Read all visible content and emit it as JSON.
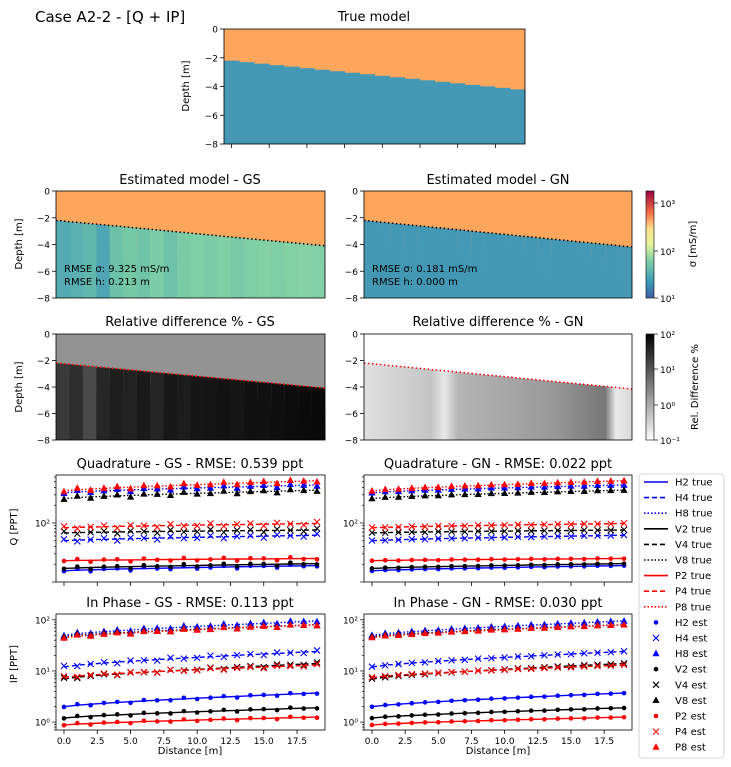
{
  "figure": {
    "suptitle": "Case A2-2 - [Q + IP]",
    "colors": {
      "layer1": "#FDA65C",
      "layer2": "#4398B5",
      "H": "#0000FF",
      "V": "#000000",
      "P": "#FF0000"
    }
  },
  "chart_data": [
    {
      "id": "true_model",
      "type": "heatmap",
      "title": "True model",
      "ylabel": "Depth [m]",
      "ylim": [
        -8,
        0
      ],
      "yticks": [
        "0",
        "−2",
        "−4",
        "−6",
        "−8"
      ],
      "x": [
        0,
        19.5
      ],
      "interface_depth": [
        -2.2,
        -4.2
      ]
    },
    {
      "id": "est_gs",
      "type": "heatmap",
      "title": "Estimated model - GS",
      "ylabel": "Depth [m]",
      "ylim": [
        -8,
        0
      ],
      "yticks": [
        "0",
        "−2",
        "−4",
        "−6",
        "−8"
      ],
      "interface_depth": [
        -2.2,
        -4.1
      ],
      "annotations": [
        "RMSE σ: 9.325 mS/m",
        "RMSE h: 0.213 m"
      ]
    },
    {
      "id": "est_gn",
      "type": "heatmap",
      "title": "Estimated model - GN",
      "yticks": [
        "0",
        "−2",
        "−4",
        "−6",
        "−8"
      ],
      "interface_depth": [
        -2.2,
        -4.2
      ],
      "annotations": [
        "RMSE σ: 0.181 mS/m",
        "RMSE h: 0.000 m"
      ]
    },
    {
      "id": "rel_gs",
      "type": "heatmap",
      "title": "Relative difference % - GS",
      "ylabel": "Depth [m]",
      "ylim": [
        -8,
        0
      ],
      "yticks": [
        "0",
        "−2",
        "−4",
        "−6",
        "−8"
      ]
    },
    {
      "id": "rel_gn",
      "type": "heatmap",
      "title": "Relative difference % - GN",
      "yticks": [
        "0",
        "−2",
        "−4",
        "−6",
        "−8"
      ]
    },
    {
      "id": "colorbar_sigma",
      "type": "heatmap",
      "label": "σ [mS/m]",
      "scale": "log",
      "range": [
        10,
        2000
      ],
      "tick_labels": [
        "10³",
        "10²",
        "10¹"
      ]
    },
    {
      "id": "colorbar_rel",
      "type": "heatmap",
      "label": "Rel. Difference %",
      "scale": "log",
      "range": [
        0.1,
        100
      ],
      "tick_labels": [
        "10²",
        "10¹",
        "10⁰",
        "10⁻¹"
      ]
    },
    {
      "id": "quad_gs",
      "type": "scatter",
      "title": "Quadrature - GS - RMSE: 0.539 ppt",
      "ylabel": "Q [PPT]",
      "yscale": "log",
      "ylim": [
        10,
        650
      ],
      "ytick_labels": [
        "10²"
      ],
      "x": [
        0,
        19.5
      ],
      "xtick_labels": []
    },
    {
      "id": "quad_gn",
      "type": "scatter",
      "title": "Quadrature - GN - RMSE: 0.022 ppt",
      "yscale": "log",
      "ylim": [
        10,
        650
      ],
      "ytick_labels": [
        "10²"
      ]
    },
    {
      "id": "ip_gs",
      "type": "scatter",
      "title": "In Phase - GS - RMSE: 0.113 ppt",
      "ylabel": "IP [PPT]",
      "xlabel": "Distance [m]",
      "yscale": "log",
      "ylim": [
        0.7,
        130
      ],
      "ytick_labels": [
        "10⁰",
        "10¹",
        "10²"
      ],
      "xtick_labels": [
        "0.0",
        "2.5",
        "5.0",
        "7.5",
        "10.0",
        "12.5",
        "15.0",
        "17.5"
      ]
    },
    {
      "id": "ip_gn",
      "type": "scatter",
      "title": "In Phase - GN - RMSE: 0.030 ppt",
      "xlabel": "Distance [m]",
      "yscale": "log",
      "ylim": [
        0.7,
        130
      ],
      "ytick_labels": [
        "10⁰",
        "10¹",
        "10²"
      ],
      "xtick_labels": [
        "0.0",
        "2.5",
        "5.0",
        "7.5",
        "10.0",
        "12.5",
        "15.0",
        "17.5"
      ]
    }
  ],
  "series": {
    "x": [
      0,
      1,
      2,
      3,
      4,
      5,
      6,
      7,
      8,
      9,
      10,
      11,
      12,
      13,
      14,
      15,
      16,
      17,
      18,
      19
    ],
    "Q": {
      "H2": [
        15.5,
        19
      ],
      "H4": [
        50,
        62
      ],
      "H8": [
        325,
        440
      ],
      "V2": [
        17,
        20.5
      ],
      "V4": [
        68,
        76
      ],
      "V8": [
        260,
        360
      ],
      "P2": [
        23,
        25
      ],
      "P4": [
        83,
        98
      ],
      "P8": [
        350,
        520
      ]
    },
    "IP": {
      "H2": [
        2.0,
        3.7
      ],
      "H4": [
        12,
        24
      ],
      "H8": [
        50,
        95
      ],
      "V2": [
        1.2,
        1.9
      ],
      "V4": [
        7,
        14
      ],
      "V8": [
        47,
        80
      ],
      "P2": [
        0.88,
        1.25
      ],
      "P4": [
        7.5,
        13
      ],
      "P8": [
        45,
        80
      ]
    }
  },
  "legend": [
    {
      "label": "H2 true",
      "color": "#0000FF",
      "kind": "line",
      "dash": "solid"
    },
    {
      "label": "H4 true",
      "color": "#0000FF",
      "kind": "line",
      "dash": "dash"
    },
    {
      "label": "H8 true",
      "color": "#0000FF",
      "kind": "line",
      "dash": "dot"
    },
    {
      "label": "V2 true",
      "color": "#000000",
      "kind": "line",
      "dash": "solid"
    },
    {
      "label": "V4 true",
      "color": "#000000",
      "kind": "line",
      "dash": "dash"
    },
    {
      "label": "V8 true",
      "color": "#000000",
      "kind": "line",
      "dash": "dot"
    },
    {
      "label": "P2 true",
      "color": "#FF0000",
      "kind": "line",
      "dash": "solid"
    },
    {
      "label": "P4 true",
      "color": "#FF0000",
      "kind": "line",
      "dash": "dash"
    },
    {
      "label": "P8 true",
      "color": "#FF0000",
      "kind": "line",
      "dash": "dot"
    },
    {
      "label": "H2 est",
      "color": "#0000FF",
      "kind": "dot"
    },
    {
      "label": "H4 est",
      "color": "#0000FF",
      "kind": "x"
    },
    {
      "label": "H8 est",
      "color": "#0000FF",
      "kind": "tri"
    },
    {
      "label": "V2 est",
      "color": "#000000",
      "kind": "dot"
    },
    {
      "label": "V4 est",
      "color": "#000000",
      "kind": "x"
    },
    {
      "label": "V8 est",
      "color": "#000000",
      "kind": "tri"
    },
    {
      "label": "P2 est",
      "color": "#FF0000",
      "kind": "dot"
    },
    {
      "label": "P4 est",
      "color": "#FF0000",
      "kind": "x"
    },
    {
      "label": "P8 est",
      "color": "#FF0000",
      "kind": "tri"
    }
  ]
}
